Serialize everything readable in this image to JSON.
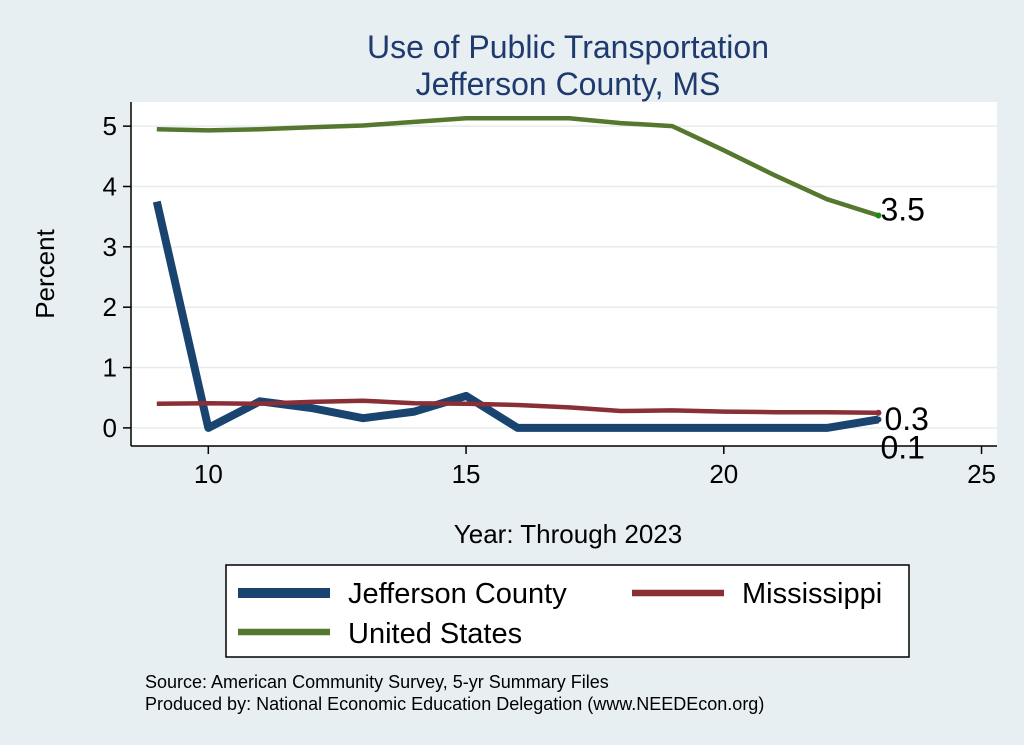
{
  "chart_data": {
    "type": "line",
    "title": [
      "Use of Public Transportation",
      "Jefferson County, MS"
    ],
    "xlabel": "Year: Through 2023",
    "ylabel": "Percent",
    "xlim": [
      8.5,
      25.3
    ],
    "ylim": [
      -0.3,
      5.4
    ],
    "xticks": [
      10,
      15,
      20,
      25
    ],
    "yticks": [
      0,
      1,
      2,
      3,
      4,
      5
    ],
    "grid": true,
    "legend_position": "bottom",
    "series": [
      {
        "name": "Jefferson County",
        "color": "#1a4470",
        "width": 8,
        "x": [
          9,
          10,
          11,
          12,
          13,
          14,
          15,
          16,
          17,
          18,
          19,
          20,
          21,
          22,
          23
        ],
        "y": [
          3.75,
          0.0,
          0.44,
          0.33,
          0.16,
          0.27,
          0.53,
          0.0,
          0.0,
          0.0,
          0.0,
          0.0,
          0.0,
          0.0,
          0.14
        ],
        "end_label": "0.1"
      },
      {
        "name": "Mississippi",
        "color": "#8a2f36",
        "width": 4.5,
        "x": [
          9,
          10,
          11,
          12,
          13,
          14,
          15,
          16,
          17,
          18,
          19,
          20,
          21,
          22,
          23
        ],
        "y": [
          0.4,
          0.41,
          0.4,
          0.43,
          0.45,
          0.41,
          0.4,
          0.38,
          0.34,
          0.28,
          0.29,
          0.27,
          0.26,
          0.26,
          0.25
        ],
        "end_label": "0.3"
      },
      {
        "name": "United States",
        "color": "#55772e",
        "width": 4.5,
        "x": [
          9,
          10,
          11,
          12,
          13,
          14,
          15,
          16,
          17,
          18,
          19,
          20,
          21,
          22,
          23
        ],
        "y": [
          4.95,
          4.93,
          4.95,
          4.98,
          5.01,
          5.07,
          5.13,
          5.13,
          5.13,
          5.05,
          5.0,
          4.6,
          4.18,
          3.79,
          3.52
        ],
        "end_label": "3.5"
      }
    ]
  },
  "source_note": "Source: American Community Survey, 5-yr Summary Files",
  "produced_note": "Produced by: National Economic Education Delegation (www.NEEDEcon.org)"
}
